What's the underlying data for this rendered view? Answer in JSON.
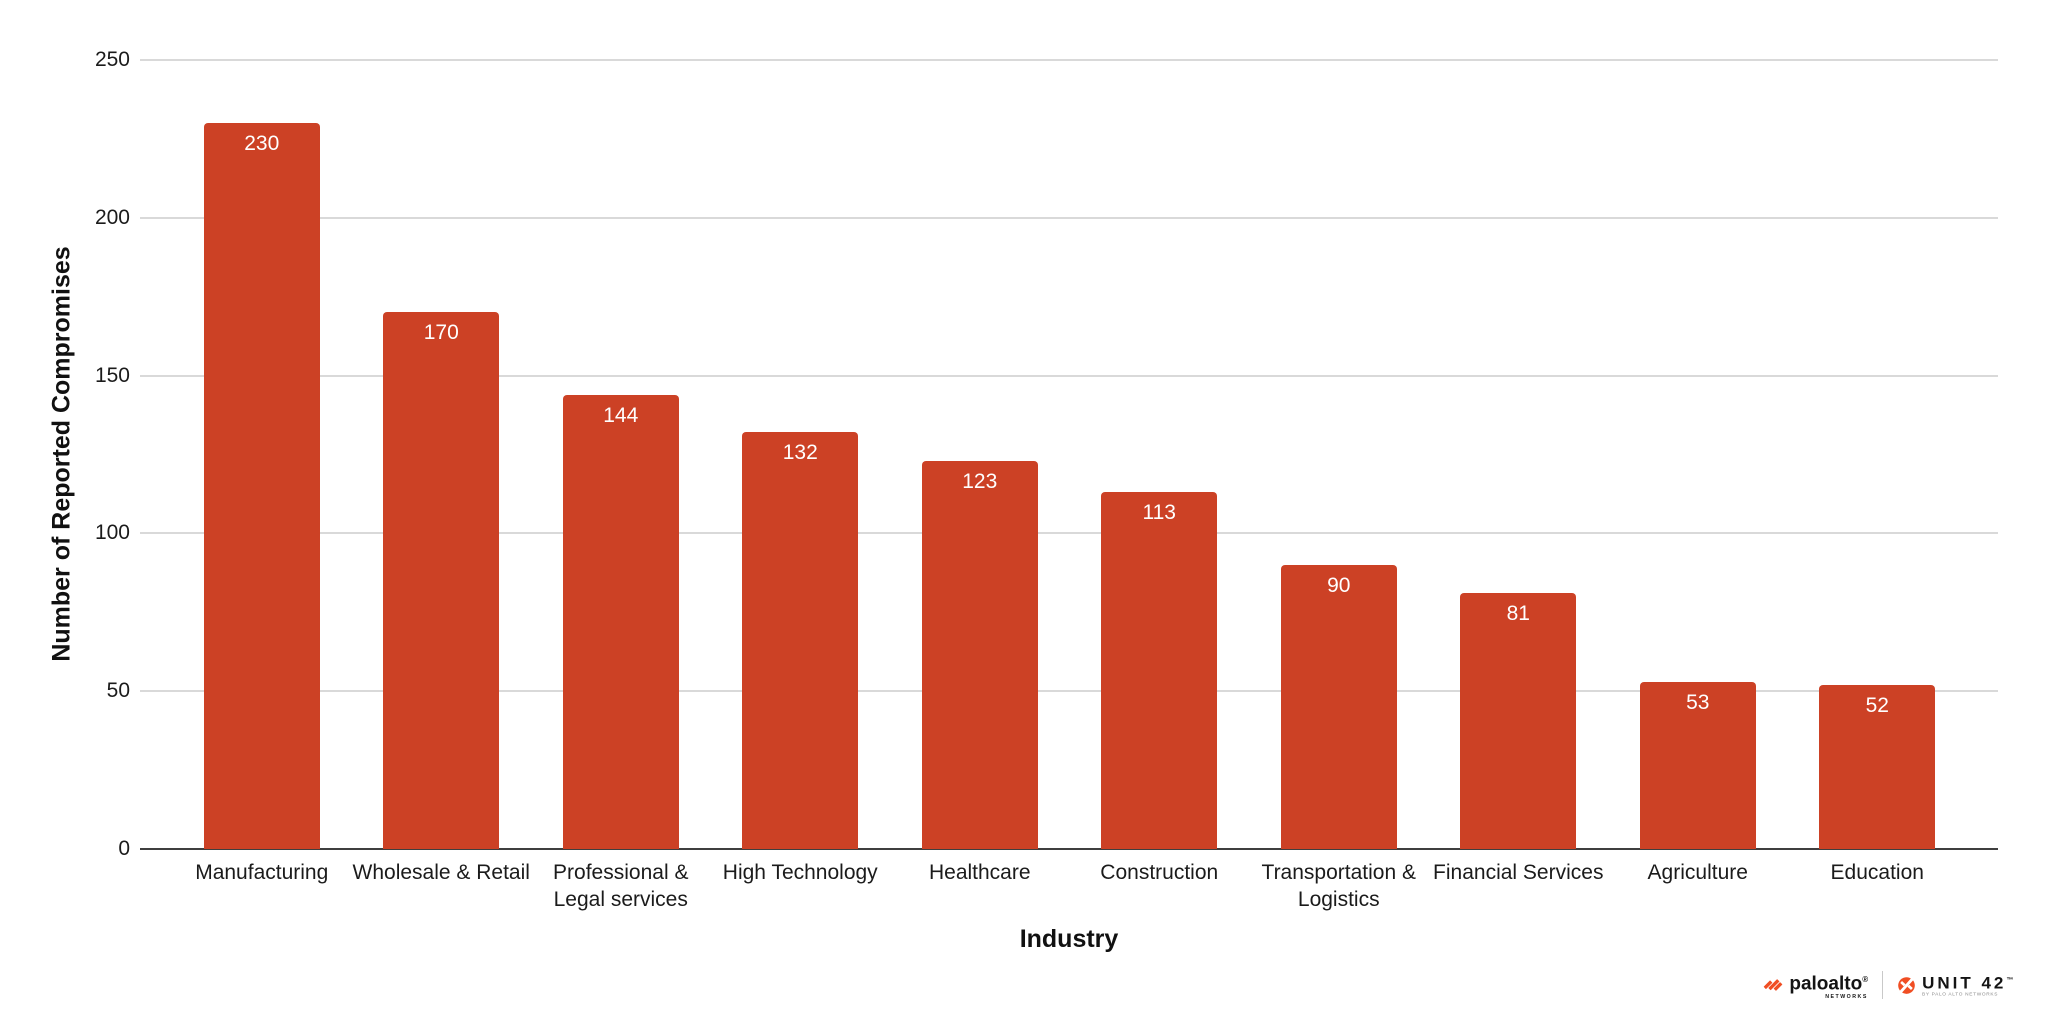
{
  "chart_data": {
    "type": "bar",
    "title": "",
    "categories": [
      "Manufacturing",
      "Wholesale & Retail",
      "Professional & Legal services",
      "High Technology",
      "Healthcare",
      "Construction",
      "Transportation & Logistics",
      "Financial Services",
      "Agriculture",
      "Education"
    ],
    "category_tick_lines": [
      [
        "Manufacturing"
      ],
      [
        "Wholesale & Retail"
      ],
      [
        "Professional &",
        "Legal services"
      ],
      [
        "High Technology"
      ],
      [
        "Healthcare"
      ],
      [
        "Construction"
      ],
      [
        "Transportation &",
        "Logistics"
      ],
      [
        "Financial Services"
      ],
      [
        "Agriculture"
      ],
      [
        "Education"
      ]
    ],
    "values": [
      230,
      170,
      144,
      132,
      123,
      113,
      90,
      81,
      53,
      52
    ],
    "xlabel": "Industry",
    "ylabel": "Number of Reported Compromises",
    "ylim": [
      0,
      250
    ],
    "yticks": [
      0,
      50,
      100,
      150,
      200,
      250
    ],
    "grid": true,
    "legend": "none",
    "bar_color": "#CC4125",
    "value_label_color": "#FFFFFF",
    "gridline_color": "#D9D9D9",
    "axis_line_color": "#3F3F3F"
  },
  "branding": {
    "paloalto_name": "paloalto",
    "paloalto_reg": "®",
    "paloalto_sub": "NETWORKS",
    "unit42_name": "UNIT 42",
    "unit42_tm": "™",
    "unit42_sub": "BY PALO ALTO NETWORKS",
    "brand_orange": "#F04E23"
  }
}
